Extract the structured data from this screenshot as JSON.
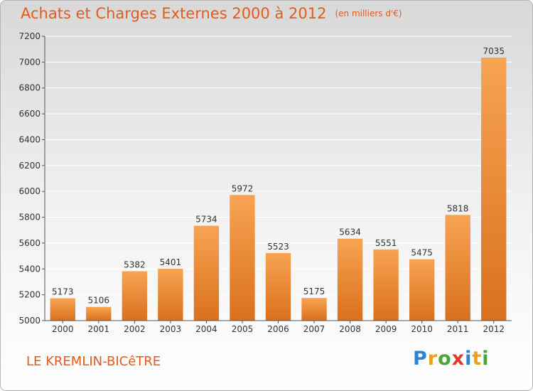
{
  "header": {
    "title": "Achats et Charges Externes 2000 à 2012",
    "unit": "(en milliers d'€)"
  },
  "footer": {
    "city": "LE KREMLIN-BICêTRE",
    "logo_letters": [
      "P",
      "r",
      "o",
      "x",
      "i",
      "t",
      "i"
    ],
    "logo_colors": [
      "#2a83d3",
      "#e9a21a",
      "#4aa63a",
      "#e23a2a",
      "#2a83d3",
      "#e9a21a",
      "#4aa63a"
    ]
  },
  "chart_data": {
    "type": "bar",
    "categories": [
      "2000",
      "2001",
      "2002",
      "2003",
      "2004",
      "2005",
      "2006",
      "2007",
      "2008",
      "2009",
      "2010",
      "2011",
      "2012"
    ],
    "values": [
      5173,
      5106,
      5382,
      5401,
      5734,
      5972,
      5523,
      5175,
      5634,
      5551,
      5475,
      5818,
      7035
    ],
    "title": "Achats et Charges Externes 2000 à 2012",
    "ylim": [
      5000,
      7200
    ],
    "yticks": [
      5000,
      5200,
      5400,
      5600,
      5800,
      6000,
      6200,
      6400,
      6600,
      6800,
      7000,
      7200
    ],
    "grid": true,
    "colors": {
      "bar_top": "#f7a452",
      "bar_bottom": "#d9701e",
      "grid": "#ffffff",
      "axis": "#555555"
    }
  }
}
